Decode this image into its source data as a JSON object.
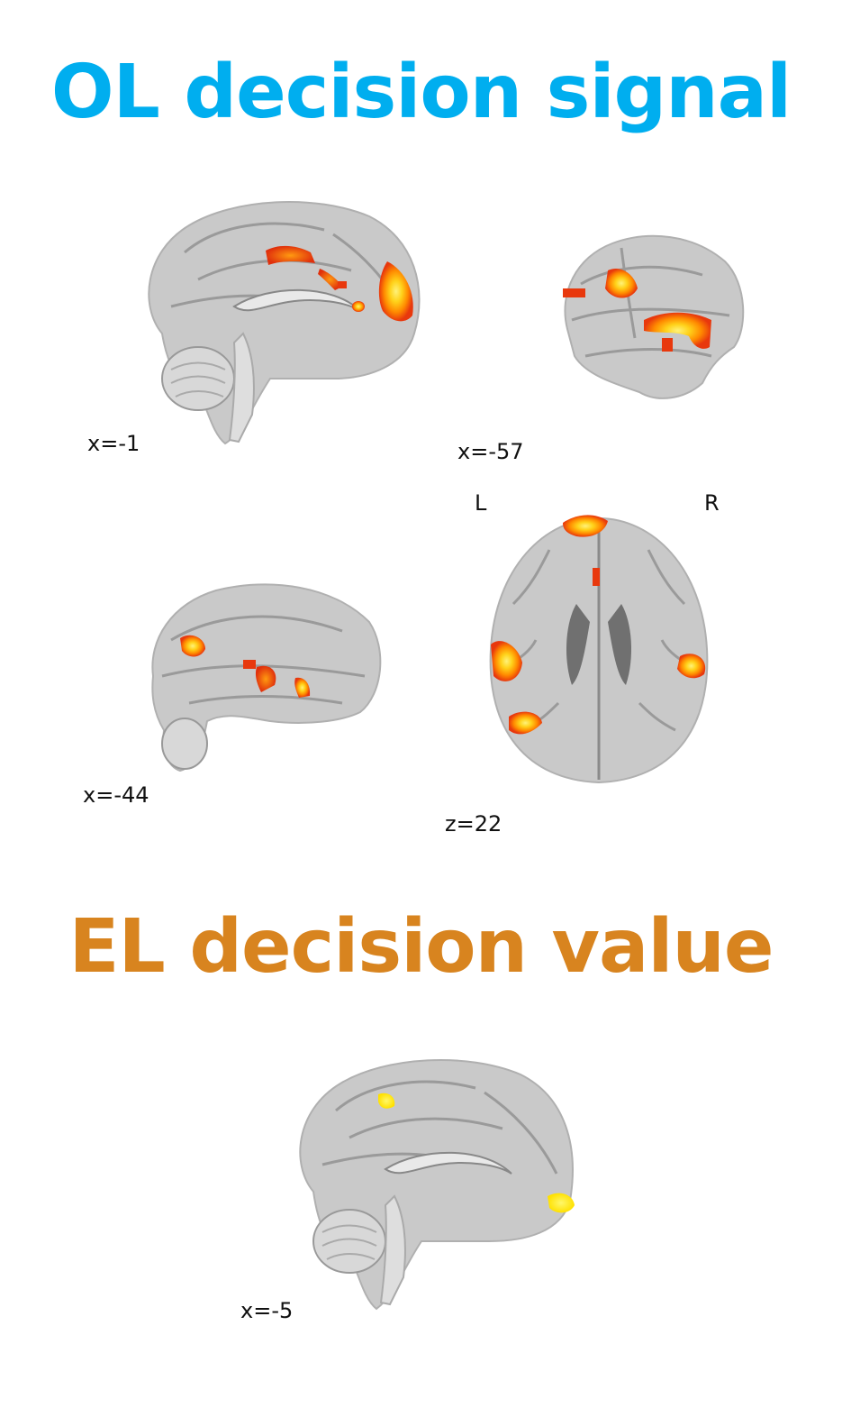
{
  "ol_section": {
    "title": "OL decision signal",
    "title_color": "#00aeef",
    "views": [
      {
        "plane": "sagittal",
        "coordinate": "x=-1"
      },
      {
        "plane": "sagittal",
        "coordinate": "x=-57"
      },
      {
        "plane": "sagittal",
        "coordinate": "x=-44"
      },
      {
        "plane": "axial",
        "coordinate": "z=22",
        "left_label": "L",
        "right_label": "R"
      }
    ],
    "activation_colors": [
      "#e8380d",
      "#ff7f00",
      "#ffe31a"
    ]
  },
  "el_section": {
    "title": "EL decision value",
    "title_color": "#d8841f",
    "views": [
      {
        "plane": "sagittal",
        "coordinate": "x=-5"
      }
    ],
    "activation_colors": [
      "#ffe600",
      "#fff23a"
    ]
  }
}
